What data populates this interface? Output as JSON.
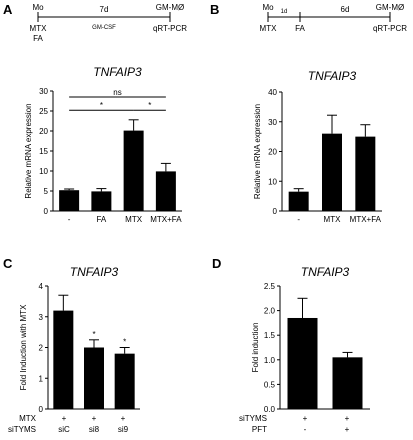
{
  "panels": {
    "A": {
      "label": "A",
      "timeline": {
        "mo": "Mo",
        "duration": "7d",
        "gm": "GM-MØ",
        "mtx": "MTX",
        "fa": "FA",
        "treatment": "GM-CSF",
        "qrt": "qRT-PCR"
      }
    },
    "B": {
      "label": "B",
      "timeline": {
        "mo": "Mo",
        "d1": "1d",
        "d2": "6d",
        "gm": "GM-MØ",
        "mtx": "MTX",
        "fa": "FA",
        "qrt": "qRT-PCR"
      }
    },
    "C": {
      "label": "C",
      "rowlabels": {
        "mtx": "MTX",
        "sitymS": "siTYMS"
      },
      "row_mtx": [
        "+",
        "+",
        "+"
      ],
      "row_si": [
        "siC",
        "si8",
        "si9"
      ]
    },
    "D": {
      "label": "D",
      "rowlabels": {
        "sitymS": "siTYMS",
        "pft": "PFT"
      },
      "row_si": [
        "+",
        "+"
      ],
      "row_pft": [
        "-",
        "+"
      ]
    }
  },
  "chart_data": [
    {
      "id": "A",
      "type": "bar",
      "title": "TNFAIP3",
      "ylabel": "Relative mRNA expression",
      "categories": [
        "-",
        "FA",
        "MTX",
        "MTX+FA"
      ],
      "values": [
        5.2,
        4.9,
        20.1,
        9.9
      ],
      "errors": [
        0.3,
        0.7,
        2.7,
        2.0
      ],
      "ylim": [
        0,
        30
      ],
      "yticks": [
        0,
        5,
        10,
        15,
        20,
        25,
        30
      ],
      "brackets": [
        {
          "from": 0,
          "to": 3,
          "label": "ns"
        },
        {
          "from": 0,
          "to": 2,
          "label": "*"
        },
        {
          "from": 2,
          "to": 3,
          "label": "*"
        }
      ]
    },
    {
      "id": "B",
      "type": "bar",
      "title": "TNFAIP3",
      "ylabel": "Relative mRNA expression",
      "categories": [
        "-",
        "MTX",
        "MTX+FA"
      ],
      "values": [
        6.5,
        26.0,
        25.0
      ],
      "errors": [
        1.0,
        6.2,
        4.0
      ],
      "ylim": [
        0,
        40
      ],
      "yticks": [
        0,
        10,
        20,
        30,
        40
      ]
    },
    {
      "id": "C",
      "type": "bar",
      "title": "TNFAIP3",
      "ylabel": "Fold Induction with MTX",
      "categories": [
        "siC",
        "si8",
        "si9"
      ],
      "values": [
        3.2,
        2.0,
        1.8
      ],
      "errors": [
        0.5,
        0.25,
        0.2
      ],
      "stars": [
        "",
        "*",
        "*"
      ],
      "ylim": [
        0,
        4
      ],
      "yticks": [
        0,
        1,
        2,
        3,
        4
      ]
    },
    {
      "id": "D",
      "type": "bar",
      "title": "TNFAIP3",
      "ylabel": "Fold induction",
      "categories": [
        "+/-",
        "+/+"
      ],
      "values": [
        1.85,
        1.05
      ],
      "errors": [
        0.4,
        0.1
      ],
      "ylim": [
        0,
        2.5
      ],
      "yticks": [
        0.0,
        0.5,
        1.0,
        1.5,
        2.0,
        2.5
      ]
    }
  ]
}
